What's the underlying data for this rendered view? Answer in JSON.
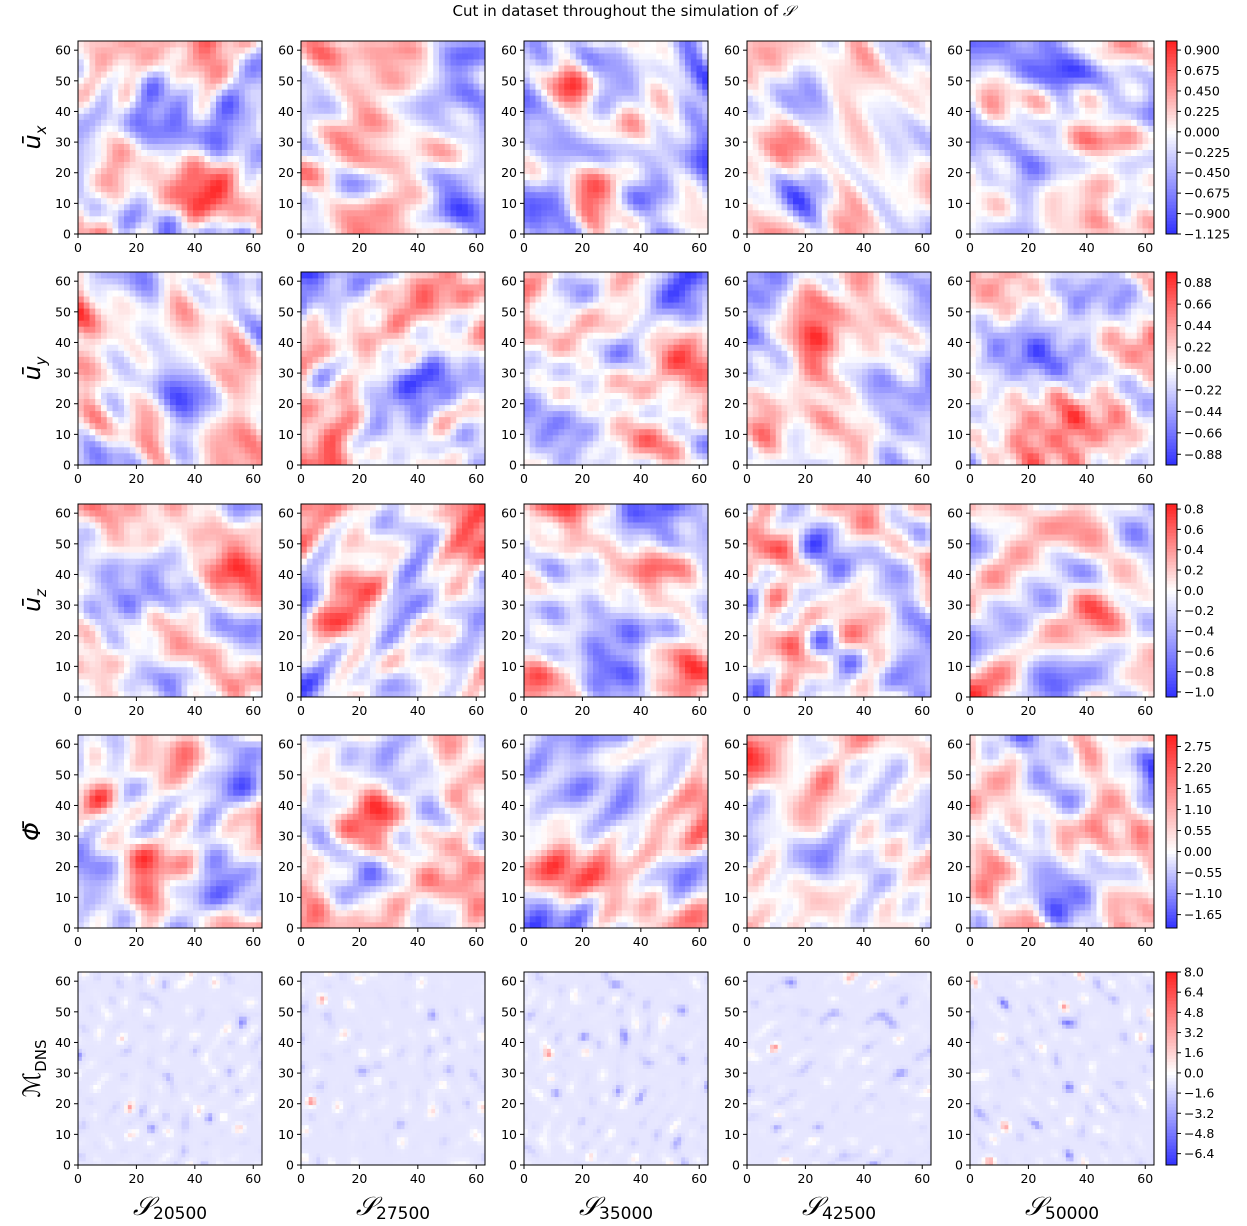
{
  "chart_data": {
    "type": "heatmap",
    "title_prefix": "Cut in dataset throughout the simulation of",
    "title_symbol": "𝒮",
    "colormap": "bwr",
    "colors": {
      "negative": "#3232ff",
      "zero": "#ffffff",
      "positive": "#ff2020"
    },
    "grid_size": 64,
    "axis_ticks": [
      "0",
      "10",
      "20",
      "30",
      "40",
      "50",
      "60"
    ],
    "x_tick_labels": [
      "0",
      "20",
      "40",
      "60"
    ],
    "x_range": [
      0,
      63
    ],
    "y_range": [
      0,
      63
    ],
    "columns": [
      {
        "symbol": "𝒮",
        "subscript": "20500"
      },
      {
        "symbol": "𝒮",
        "subscript": "27500"
      },
      {
        "symbol": "𝒮",
        "subscript": "35000"
      },
      {
        "symbol": "𝒮",
        "subscript": "42500"
      },
      {
        "symbol": "𝒮",
        "subscript": "50000"
      }
    ],
    "rows": [
      {
        "label": "ū",
        "subscript": "x",
        "vmin": -1.125,
        "vmax": 1.0,
        "colorbar_ticks": [
          "0.900",
          "0.675",
          "0.450",
          "0.225",
          "0.000",
          "−0.225",
          "−0.450",
          "−0.675",
          "−0.900",
          "−1.125"
        ],
        "colorbar_values": [
          0.9,
          0.675,
          0.45,
          0.225,
          0.0,
          -0.225,
          -0.45,
          -0.675,
          -0.9,
          -1.125
        ]
      },
      {
        "label": "ū",
        "subscript": "y",
        "vmin": -0.99,
        "vmax": 0.99,
        "colorbar_ticks": [
          "0.88",
          "0.66",
          "0.44",
          "0.22",
          "0.00",
          "−0.22",
          "−0.44",
          "−0.66",
          "−0.88"
        ],
        "colorbar_values": [
          0.88,
          0.66,
          0.44,
          0.22,
          0.0,
          -0.22,
          -0.44,
          -0.66,
          -0.88
        ]
      },
      {
        "label": "ū",
        "subscript": "z",
        "vmin": -1.05,
        "vmax": 0.85,
        "colorbar_ticks": [
          "0.8",
          "0.6",
          "0.4",
          "0.2",
          "0.0",
          "−0.2",
          "−0.4",
          "−0.6",
          "−0.8",
          "−1.0"
        ],
        "colorbar_values": [
          0.8,
          0.6,
          0.4,
          0.2,
          0.0,
          -0.2,
          -0.4,
          -0.6,
          -0.8,
          -1.0
        ]
      },
      {
        "label": "Φ̄",
        "subscript": "",
        "vmin": -2.0,
        "vmax": 3.05,
        "colorbar_ticks": [
          "2.75",
          "2.20",
          "1.65",
          "1.10",
          "0.55",
          "0.00",
          "−0.55",
          "−1.10",
          "−1.65"
        ],
        "colorbar_values": [
          2.75,
          2.2,
          1.65,
          1.1,
          0.55,
          0.0,
          -0.55,
          -1.1,
          -1.65
        ]
      },
      {
        "label": "ℳ",
        "subscript": "DNS",
        "vmin": -7.3,
        "vmax": 8.0,
        "colorbar_ticks": [
          "8.0",
          "6.4",
          "4.8",
          "3.2",
          "1.6",
          "0.0",
          "−1.6",
          "−3.2",
          "−4.8",
          "−6.4"
        ],
        "colorbar_values": [
          8.0,
          6.4,
          4.8,
          3.2,
          1.6,
          0.0,
          -1.6,
          -3.2,
          -4.8,
          -6.4
        ]
      }
    ]
  }
}
